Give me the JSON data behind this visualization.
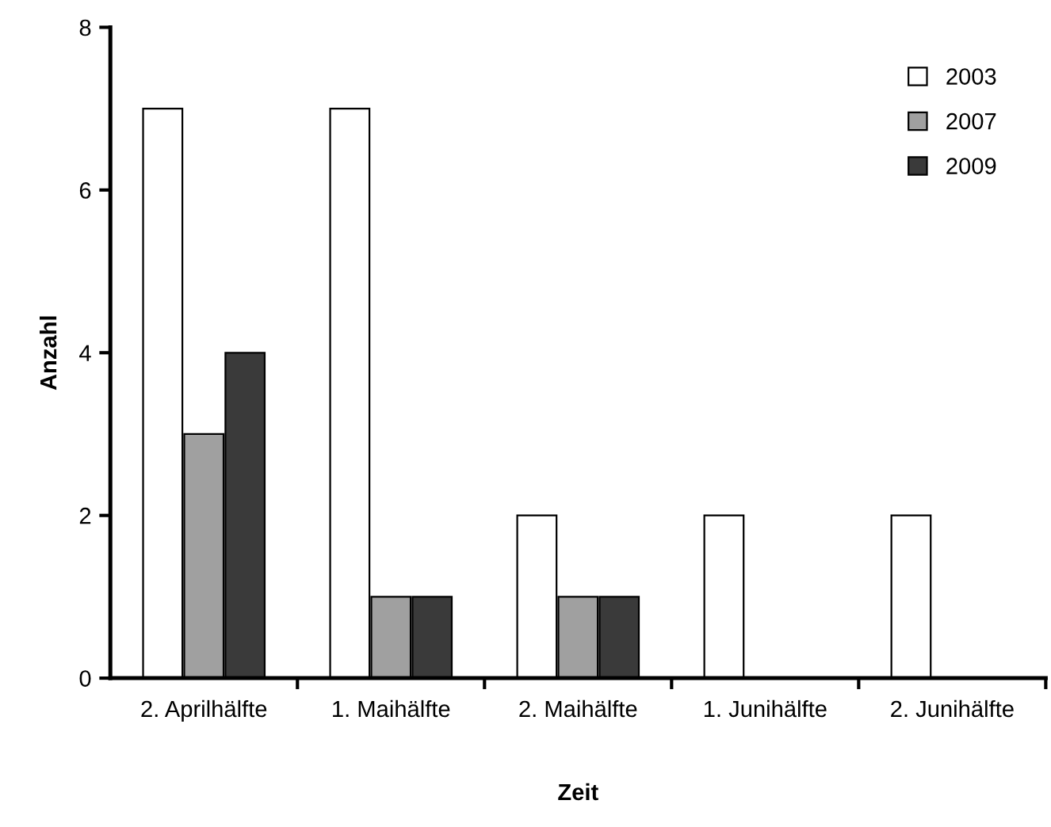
{
  "chart_data": {
    "type": "bar",
    "xlabel": "Zeit",
    "ylabel": "Anzahl",
    "categories": [
      "2. Aprilhälfte",
      "1. Maihälfte",
      "2. Maihälfte",
      "1. Junihälfte",
      "2. Junihälfte"
    ],
    "series": [
      {
        "name": "2003",
        "color": "#ffffff",
        "values": [
          7,
          7,
          2,
          2,
          2
        ]
      },
      {
        "name": "2007",
        "color": "#a0a0a0",
        "values": [
          3,
          1,
          1,
          0,
          0
        ]
      },
      {
        "name": "2009",
        "color": "#3a3a3a",
        "values": [
          4,
          1,
          1,
          0,
          0
        ]
      }
    ],
    "ylim": [
      0,
      8
    ],
    "yticks": [
      0,
      2,
      4,
      6,
      8
    ],
    "grid": false,
    "legend": "top right"
  }
}
